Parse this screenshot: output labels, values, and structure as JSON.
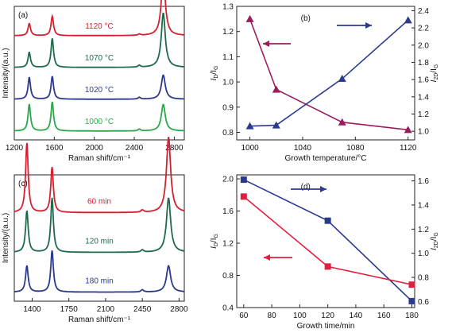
{
  "chart_data": [
    {
      "panel": "a",
      "panel_label": "(a)",
      "type": "line",
      "xlabel": "Raman shift/cm⁻¹",
      "ylabel": "Intensity/(a.u.)",
      "xlim": [
        1200,
        2900
      ],
      "x_ticks": [
        1200,
        1600,
        2000,
        2400,
        2800
      ],
      "series": [
        {
          "name": "1120 °C",
          "color": "#d62030",
          "offset": 3,
          "peaks": [
            [
              1350,
              0.2
            ],
            [
              1580,
              0.32
            ],
            [
              2450,
              0.02
            ],
            [
              2690,
              1.0
            ]
          ]
        },
        {
          "name": "1070 °C",
          "color": "#1e6a4a",
          "offset": 2,
          "peaks": [
            [
              1350,
              0.25
            ],
            [
              1580,
              0.48
            ],
            [
              2450,
              0.03
            ],
            [
              2690,
              0.9
            ]
          ]
        },
        {
          "name": "1020 °C",
          "color": "#2b3a8f",
          "offset": 1,
          "peaks": [
            [
              1350,
              0.36
            ],
            [
              1580,
              0.38
            ],
            [
              2450,
              0.03
            ],
            [
              2690,
              0.4
            ]
          ]
        },
        {
          "name": "1000 °C",
          "color": "#2aa84a",
          "offset": 0,
          "peaks": [
            [
              1350,
              0.44
            ],
            [
              1580,
              0.48
            ],
            [
              2450,
              0.03
            ],
            [
              2690,
              0.44
            ]
          ]
        }
      ]
    },
    {
      "panel": "b",
      "panel_label": "(b)",
      "type": "line",
      "xlabel": "Growth temperature/°C",
      "ylabel_left": "I_D/I_G",
      "ylabel_right": "I_2D/I_G",
      "x_ticks": [
        1000,
        1040,
        1080,
        1120
      ],
      "y_left_ticks": [
        0.8,
        0.9,
        1.0,
        1.1,
        1.2,
        1.3
      ],
      "y_right_ticks": [
        1.0,
        1.2,
        1.4,
        1.6,
        1.8,
        2.0,
        2.2,
        2.4
      ],
      "xlim": [
        990,
        1125
      ],
      "ylim_left": [
        0.77,
        1.3
      ],
      "ylim_right": [
        0.9,
        2.45
      ],
      "series": [
        {
          "axis": "left",
          "marker": "triangle",
          "color": "#9a1c5c",
          "x": [
            1000,
            1020,
            1070,
            1120
          ],
          "y": [
            1.25,
            0.97,
            0.84,
            0.81
          ]
        },
        {
          "axis": "right",
          "marker": "triangle",
          "color": "#2b3a8f",
          "x": [
            1000,
            1020,
            1070,
            1120
          ],
          "y": [
            1.06,
            1.07,
            1.61,
            2.29
          ]
        }
      ]
    },
    {
      "panel": "c",
      "panel_label": "(c)",
      "type": "line",
      "xlabel": "Raman shift/cm⁻¹",
      "ylabel": "Intensity/(a.u.)",
      "xlim": [
        1230,
        2850
      ],
      "x_ticks": [
        1400,
        1750,
        2100,
        2450,
        2800
      ],
      "series": [
        {
          "name": "60 min",
          "color": "#d62030",
          "offset": 2,
          "peaks": [
            [
              1350,
              0.92
            ],
            [
              1590,
              0.6
            ],
            [
              2450,
              0.03
            ],
            [
              2700,
              1.0
            ]
          ]
        },
        {
          "name": "120 min",
          "color": "#1e6a4a",
          "offset": 1,
          "peaks": [
            [
              1350,
              0.55
            ],
            [
              1590,
              0.72
            ],
            [
              2450,
              0.03
            ],
            [
              2700,
              0.72
            ]
          ]
        },
        {
          "name": "180 min",
          "color": "#2b3a8f",
          "offset": 0,
          "peaks": [
            [
              1350,
              0.35
            ],
            [
              1590,
              0.55
            ],
            [
              2450,
              0.03
            ],
            [
              2700,
              0.35
            ]
          ]
        }
      ]
    },
    {
      "panel": "d",
      "panel_label": "(d)",
      "type": "line",
      "xlabel": "Growth time/min",
      "ylabel_left": "I_D/I_G",
      "ylabel_right": "I_2D/I_G",
      "x_ticks": [
        60,
        80,
        100,
        120,
        140,
        160,
        180
      ],
      "y_left_ticks": [
        0.4,
        0.8,
        1.2,
        1.6,
        2.0
      ],
      "y_right_ticks": [
        0.6,
        0.8,
        1.0,
        1.2,
        1.4,
        1.6
      ],
      "xlim": [
        55,
        182
      ],
      "ylim_left": [
        0.4,
        2.05
      ],
      "ylim_right": [
        0.55,
        1.65
      ],
      "series": [
        {
          "axis": "left",
          "marker": "square",
          "color": "#2b3a8f",
          "x": [
            60,
            120,
            180
          ],
          "y": [
            1.99,
            1.48,
            0.48
          ]
        },
        {
          "axis": "right",
          "marker": "square",
          "color": "#e02040",
          "x": [
            60,
            120,
            180
          ],
          "y": [
            1.47,
            0.89,
            0.74
          ]
        }
      ]
    }
  ]
}
